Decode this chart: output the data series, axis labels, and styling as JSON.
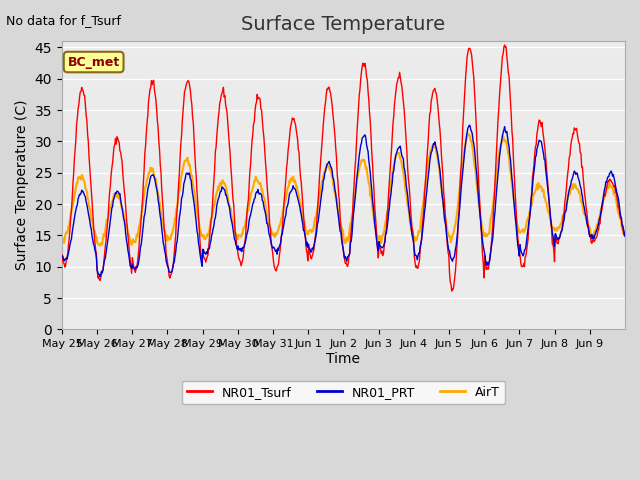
{
  "title": "Surface Temperature",
  "xlabel": "Time",
  "ylabel": "Surface Temperature (C)",
  "top_left_text": "No data for f_Tsurf",
  "annotation_text": "BC_met",
  "ylim": [
    0,
    46
  ],
  "yticks": [
    0,
    5,
    10,
    15,
    20,
    25,
    30,
    35,
    40,
    45
  ],
  "x_labels": [
    "May 25",
    "May 26",
    "May 27",
    "May 28",
    "May 29",
    "May 30",
    "May 31",
    "Jun 1",
    "Jun 2",
    "Jun 3",
    "Jun 4",
    "Jun 5",
    "Jun 6",
    "Jun 7",
    "Jun 8",
    "Jun 9"
  ],
  "colors": {
    "NR01_Tsurf": "#ff0000",
    "NR01_PRT": "#0000cc",
    "AirT": "#ffaa00"
  },
  "legend_labels": [
    "NR01_Tsurf",
    "NR01_PRT",
    "AirT"
  ],
  "background_color": "#d8d8d8",
  "plot_bg_color": "#ebebeb",
  "n_days": 16,
  "pts_per_day": 48,
  "tsurf_peaks": [
    38.5,
    30.5,
    39.5,
    39.8,
    38.0,
    37.2,
    33.5,
    38.5,
    42.5,
    40.5,
    38.5,
    45.0,
    45.0,
    33.0,
    32.0,
    24.0
  ],
  "tsurf_troughs": [
    10.0,
    8.0,
    9.5,
    8.5,
    11.0,
    10.5,
    9.5,
    11.5,
    10.0,
    12.0,
    10.0,
    6.5,
    9.5,
    10.0,
    14.0,
    14.0
  ],
  "prt_peaks": [
    22.0,
    22.0,
    24.5,
    25.0,
    22.5,
    22.0,
    22.5,
    26.5,
    31.0,
    29.0,
    29.5,
    32.5,
    32.0,
    30.0,
    25.0,
    25.0
  ],
  "prt_troughs": [
    11.0,
    8.5,
    9.5,
    9.0,
    12.0,
    12.5,
    12.5,
    12.5,
    11.0,
    13.0,
    11.5,
    11.0,
    10.5,
    12.0,
    14.5,
    14.5
  ],
  "airt_peaks": [
    24.5,
    21.5,
    25.5,
    27.0,
    23.5,
    24.0,
    24.0,
    26.0,
    27.0,
    28.0,
    29.5,
    31.0,
    30.5,
    23.0,
    23.0,
    23.0
  ],
  "airt_troughs": [
    14.5,
    13.5,
    14.0,
    14.5,
    14.5,
    15.0,
    15.0,
    15.5,
    14.0,
    14.5,
    14.5,
    14.5,
    15.0,
    15.5,
    16.0,
    15.0
  ],
  "peak_phase": 0.58,
  "airt_peak_phase": 0.55
}
